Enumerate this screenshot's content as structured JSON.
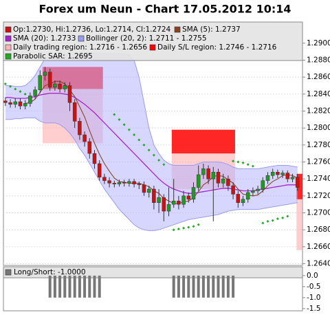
{
  "chart_data": [
    {
      "type": "candlestick",
      "title": "Forex um Neun - Chart 17.05.2012 10:14",
      "ylim": [
        1.2638,
        1.2925
      ],
      "yticks": [
        {
          "value": 1.264,
          "label": "1.2640"
        },
        {
          "value": 1.266,
          "label": "1.2660"
        },
        {
          "value": 1.268,
          "label": "1.2680"
        },
        {
          "value": 1.27,
          "label": "1.2700"
        },
        {
          "value": 1.272,
          "label": "1.2720"
        },
        {
          "value": 1.274,
          "label": "1.2740"
        },
        {
          "value": 1.276,
          "label": "1.2760"
        },
        {
          "value": 1.278,
          "label": "1.2780"
        },
        {
          "value": 1.28,
          "label": "1.2800"
        },
        {
          "value": 1.282,
          "label": "1.2820"
        },
        {
          "value": 1.284,
          "label": "1.2840"
        },
        {
          "value": 1.286,
          "label": "1.2860"
        },
        {
          "value": 1.288,
          "label": "1.2880"
        },
        {
          "value": 1.29,
          "label": "1.2900"
        }
      ],
      "candles": {
        "name": "Op:1.2730, Hi:1.2736, Lo:1.2714, Cl:1.2724",
        "up_color": "#229922",
        "down_color": "#cc1111",
        "open": [
          1.2832,
          1.283,
          1.2828,
          1.2831,
          1.2826,
          1.2829,
          1.2838,
          1.2845,
          1.2862,
          1.2866,
          1.2848,
          1.2852,
          1.2846,
          1.285,
          1.283,
          1.2808,
          1.2792,
          1.2784,
          1.277,
          1.2758,
          1.2742,
          1.2738,
          1.2735,
          1.2734,
          1.2736,
          1.2735,
          1.2737,
          1.2734,
          1.2733,
          1.2724,
          1.2728,
          1.2712,
          1.2718,
          1.2702,
          1.271,
          1.2714,
          1.271,
          1.272,
          1.2716,
          1.273,
          1.2745,
          1.2752,
          1.274,
          1.2748,
          1.2735,
          1.274,
          1.2732,
          1.2722,
          1.2712,
          1.2716,
          1.2724,
          1.2726,
          1.2728,
          1.2738,
          1.2744,
          1.2748,
          1.2745,
          1.2747,
          1.274,
          1.2742
        ],
        "high": [
          1.2836,
          1.2834,
          1.2835,
          1.2835,
          1.2833,
          1.2842,
          1.2849,
          1.2868,
          1.2872,
          1.287,
          1.2856,
          1.2856,
          1.2854,
          1.2854,
          1.2834,
          1.2812,
          1.2796,
          1.2788,
          1.2774,
          1.2762,
          1.2746,
          1.2742,
          1.2738,
          1.2739,
          1.2739,
          1.274,
          1.274,
          1.2737,
          1.2737,
          1.2732,
          1.2732,
          1.2728,
          1.2722,
          1.273,
          1.274,
          1.272,
          1.2726,
          1.2724,
          1.2736,
          1.2756,
          1.2758,
          1.2756,
          1.2754,
          1.2752,
          1.2746,
          1.2744,
          1.2736,
          1.2726,
          1.272,
          1.2728,
          1.273,
          1.2732,
          1.2742,
          1.2748,
          1.2752,
          1.2751,
          1.275,
          1.275,
          1.2746,
          1.2746
        ],
        "low": [
          1.2826,
          1.2824,
          1.2824,
          1.2822,
          1.2822,
          1.2825,
          1.2834,
          1.2841,
          1.2856,
          1.2844,
          1.2844,
          1.2842,
          1.2842,
          1.282,
          1.28,
          1.2786,
          1.2778,
          1.2764,
          1.2752,
          1.2738,
          1.2734,
          1.273,
          1.273,
          1.2731,
          1.2731,
          1.2731,
          1.273,
          1.2728,
          1.272,
          1.2718,
          1.2704,
          1.27,
          1.269,
          1.2696,
          1.2706,
          1.2704,
          1.2706,
          1.2712,
          1.2712,
          1.2726,
          1.274,
          1.2734,
          1.269,
          1.273,
          1.273,
          1.2726,
          1.2716,
          1.2706,
          1.2708,
          1.2712,
          1.272,
          1.2722,
          1.2724,
          1.2734,
          1.274,
          1.2741,
          1.2741,
          1.2736,
          1.2736,
          1.2726
        ],
        "close": [
          1.283,
          1.2828,
          1.2831,
          1.2826,
          1.2829,
          1.2838,
          1.2845,
          1.2862,
          1.2866,
          1.2848,
          1.2852,
          1.2846,
          1.285,
          1.283,
          1.2808,
          1.2792,
          1.2784,
          1.277,
          1.2758,
          1.2742,
          1.2738,
          1.2735,
          1.2734,
          1.2736,
          1.2735,
          1.2737,
          1.2734,
          1.2733,
          1.2724,
          1.2728,
          1.2712,
          1.2718,
          1.2702,
          1.271,
          1.2714,
          1.271,
          1.272,
          1.2716,
          1.273,
          1.2745,
          1.2752,
          1.274,
          1.2748,
          1.2735,
          1.274,
          1.2732,
          1.2722,
          1.2712,
          1.2716,
          1.2724,
          1.2726,
          1.2728,
          1.2738,
          1.2744,
          1.2748,
          1.2745,
          1.2747,
          1.274,
          1.2742,
          1.273
        ]
      },
      "sma5": {
        "name": "SMA (5): 1.2737",
        "color": "#884422",
        "values": [
          null,
          null,
          null,
          null,
          1.2829,
          1.283,
          1.2834,
          1.2842,
          1.285,
          1.2852,
          1.2855,
          1.2855,
          1.2852,
          1.2845,
          1.2837,
          1.2825,
          1.2813,
          1.2797,
          1.2782,
          1.2769,
          1.2758,
          1.2749,
          1.2741,
          1.2737,
          1.2736,
          1.2735,
          1.2735,
          1.2735,
          1.2733,
          1.2731,
          1.2726,
          1.2723,
          1.2717,
          1.2714,
          1.2711,
          1.2711,
          1.2713,
          1.2714,
          1.2718,
          1.2725,
          1.2733,
          1.2737,
          1.2743,
          1.2744,
          1.2743,
          1.2739,
          1.2735,
          1.2728,
          1.2722,
          1.2721,
          1.272,
          1.2721,
          1.2726,
          1.2732,
          1.2737,
          1.274,
          1.2744,
          1.2745,
          1.2744,
          1.2741
        ]
      },
      "sma20": {
        "name": "SMA (20): 1.2733",
        "color": "#aa22cc",
        "values": [
          1.2836,
          1.2836,
          1.2835,
          1.2835,
          1.2835,
          1.2836,
          1.2837,
          1.2839,
          1.284,
          1.2841,
          1.2841,
          1.2841,
          1.284,
          1.2839,
          1.2836,
          1.2832,
          1.2828,
          1.2823,
          1.2818,
          1.2812,
          1.2806,
          1.28,
          1.2794,
          1.2788,
          1.2782,
          1.2776,
          1.277,
          1.2764,
          1.2758,
          1.2752,
          1.2746,
          1.274,
          1.2735,
          1.2731,
          1.2728,
          1.2726,
          1.2724,
          1.2723,
          1.2723,
          1.2724,
          1.2725,
          1.2726,
          1.2727,
          1.2728,
          1.2729,
          1.2729,
          1.2728,
          1.2727,
          1.2726,
          1.2726,
          1.2726,
          1.2727,
          1.2728,
          1.2729,
          1.273,
          1.2731,
          1.2732,
          1.2733,
          1.2733,
          1.2733
        ]
      },
      "bollinger": {
        "name": "Bollinger (20, 2): 1.2711 - 1.2755",
        "color": "#9a9af0",
        "upper": [
          1.285,
          1.285,
          1.2849,
          1.2849,
          1.285,
          1.2855,
          1.2862,
          1.2872,
          1.2882,
          1.2884,
          1.2885,
          1.2886,
          1.2886,
          1.2886,
          1.2887,
          1.2888,
          1.2888,
          1.2888,
          1.2888,
          1.2888,
          1.2888,
          1.2888,
          1.2888,
          1.2888,
          1.2887,
          1.2886,
          1.288,
          1.286,
          1.283,
          1.28,
          1.278,
          1.277,
          1.2762,
          1.2758,
          1.2756,
          1.2756,
          1.2756,
          1.2756,
          1.2756,
          1.2758,
          1.276,
          1.276,
          1.276,
          1.276,
          1.2759,
          1.2757,
          1.2754,
          1.2752,
          1.2752,
          1.2752,
          1.2752,
          1.2752,
          1.2753,
          1.2754,
          1.2755,
          1.2756,
          1.2756,
          1.2756,
          1.2755,
          1.2754
        ],
        "lower": [
          1.281,
          1.281,
          1.2811,
          1.2811,
          1.2812,
          1.2812,
          1.2812,
          1.2808,
          1.2806,
          1.2806,
          1.2806,
          1.2804,
          1.28,
          1.2794,
          1.2786,
          1.2776,
          1.2768,
          1.2758,
          1.2748,
          1.2738,
          1.2728,
          1.272,
          1.2712,
          1.2704,
          1.2698,
          1.2692,
          1.2686,
          1.2682,
          1.268,
          1.2679,
          1.2679,
          1.268,
          1.2682,
          1.2684,
          1.2686,
          1.2688,
          1.269,
          1.2692,
          1.2693,
          1.2694,
          1.2695,
          1.2696,
          1.2697,
          1.2698,
          1.27,
          1.2702,
          1.2703,
          1.2704,
          1.2704,
          1.2704,
          1.2704,
          1.2704,
          1.2705,
          1.2706,
          1.2707,
          1.2708,
          1.2709,
          1.271,
          1.2711,
          1.2712
        ]
      },
      "regions": {
        "trade_name": "Daily trading region: 1.2716 - 1.2656",
        "trade_color": "#ffb4b4",
        "sl_name": "Daily S/L region: 1.2746 - 1.2716",
        "sl_color": "#ff0000",
        "days": [
          {
            "start": 7.5,
            "end": 19.7,
            "sl": [
              1.2846,
              1.2872
            ],
            "trade": [
              1.2782,
              1.2846
            ]
          },
          {
            "start": 33.6,
            "end": 46.4,
            "sl": [
              1.277,
              1.2798
            ],
            "trade": [
              1.2728,
              1.277
            ]
          },
          {
            "start": 58.8,
            "end": 60,
            "sl": [
              1.2716,
              1.2746
            ],
            "trade": [
              1.2656,
              1.2716
            ]
          }
        ]
      },
      "sar": {
        "name": "Parabolic SAR: 1.2695",
        "color": "#22aa22",
        "values": [
          1.2852,
          1.2849,
          1.2846,
          1.2843,
          1.284,
          1.2836,
          null,
          null,
          null,
          null,
          null,
          null,
          null,
          null,
          null,
          null,
          null,
          null,
          null,
          null,
          null,
          null,
          1.2816,
          1.281,
          1.2804,
          1.2798,
          1.2792,
          1.2786,
          1.278,
          1.2774,
          1.2768,
          1.2762,
          1.2757,
          null,
          1.268,
          1.2681,
          1.2682,
          1.2683,
          1.2684,
          1.2686,
          null,
          null,
          null,
          null,
          null,
          null,
          1.2761,
          1.276,
          1.2759,
          1.2757,
          1.2755,
          null,
          1.2688,
          1.269,
          1.2691,
          1.2693,
          1.2694,
          1.2696,
          null,
          null
        ]
      }
    },
    {
      "type": "bar",
      "ylim": [
        -1.6,
        0.4
      ],
      "yticks": [
        {
          "value": 0,
          "label": "0.0"
        },
        -0.5,
        {
          "value": -1,
          "label": "-1.0"
        },
        -1.5
      ],
      "series": [
        {
          "name": "Long/Short: -1.0000",
          "color": "#777777",
          "values": [
            0,
            0,
            0,
            0,
            0,
            0,
            0,
            0,
            0,
            -1,
            -1,
            -1,
            -1,
            -1,
            -1,
            -1,
            -1,
            -1,
            -1,
            -1,
            0,
            0,
            0,
            0,
            0,
            0,
            0,
            0,
            0,
            0,
            0,
            0,
            0,
            0,
            -1,
            -1,
            -1,
            -1,
            -1,
            -1,
            -1,
            -1,
            -1,
            -1,
            -1,
            -1,
            -1,
            0,
            0,
            0,
            0,
            0,
            0,
            0,
            0,
            0,
            0,
            0,
            0,
            0
          ]
        }
      ]
    }
  ]
}
